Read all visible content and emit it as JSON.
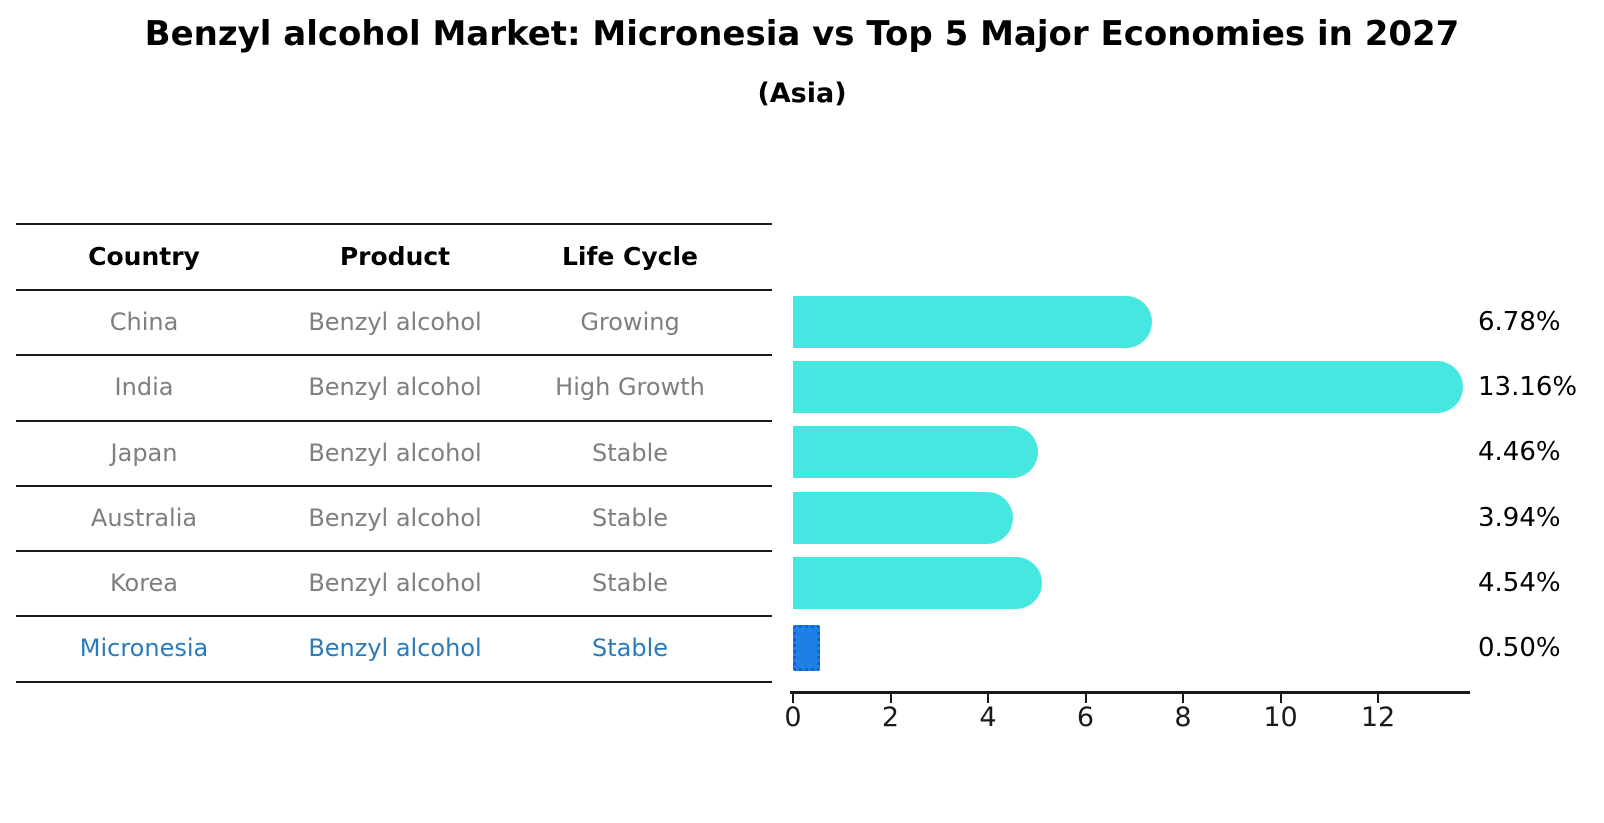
{
  "title": "Benzyl alcohol Market: Micronesia vs Top 5 Major Economies in 2027",
  "subtitle": "(Asia)",
  "table": {
    "headers": [
      "Country",
      "Product",
      "Life Cycle"
    ],
    "rows": [
      {
        "country": "China",
        "product": "Benzyl alcohol",
        "life_cycle": "Growing",
        "highlight": false
      },
      {
        "country": "India",
        "product": "Benzyl alcohol",
        "life_cycle": "High Growth",
        "highlight": false
      },
      {
        "country": "Japan",
        "product": "Benzyl alcohol",
        "life_cycle": "Stable",
        "highlight": false
      },
      {
        "country": "Australia",
        "product": "Benzyl alcohol",
        "life_cycle": "Stable",
        "highlight": false
      },
      {
        "country": "Korea",
        "product": "Benzyl alcohol",
        "life_cycle": "Stable",
        "highlight": false
      },
      {
        "country": "Micronesia",
        "product": "Benzyl alcohol",
        "life_cycle": "Stable",
        "highlight": true
      }
    ],
    "text_color": "#7f7f7f",
    "highlight_text_color": "#2b7bba"
  },
  "chart_data": {
    "type": "bar",
    "orientation": "horizontal",
    "title": "Benzyl alcohol Market: Micronesia vs Top 5 Major Economies in 2027",
    "subtitle": "(Asia)",
    "categories": [
      "China",
      "India",
      "Japan",
      "Australia",
      "Korea",
      "Micronesia"
    ],
    "values": [
      6.78,
      13.16,
      4.46,
      3.94,
      4.54,
      0.5
    ],
    "value_labels": [
      "6.78%",
      "13.16%",
      "4.46%",
      "3.94%",
      "4.54%",
      "0.50%"
    ],
    "xticks": [
      0,
      2,
      4,
      6,
      8,
      10,
      12
    ],
    "xlim": [
      0,
      13.9
    ],
    "grid": false,
    "legend": null,
    "bar_color": "#46E7E1",
    "highlight_index": 5,
    "highlight_bar_color": "#1E7FE5",
    "highlight_bar_border": "#1261D1"
  }
}
